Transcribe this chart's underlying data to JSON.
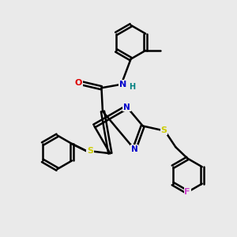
{
  "bg_color": "#eaeaea",
  "atom_colors": {
    "C": "#000000",
    "N": "#0000cc",
    "O": "#dd0000",
    "S": "#cccc00",
    "F": "#cc44cc",
    "H": "#008080"
  },
  "bond_color": "#000000",
  "bond_width": 1.8,
  "figsize": [
    3.0,
    3.0
  ],
  "dpi": 100
}
